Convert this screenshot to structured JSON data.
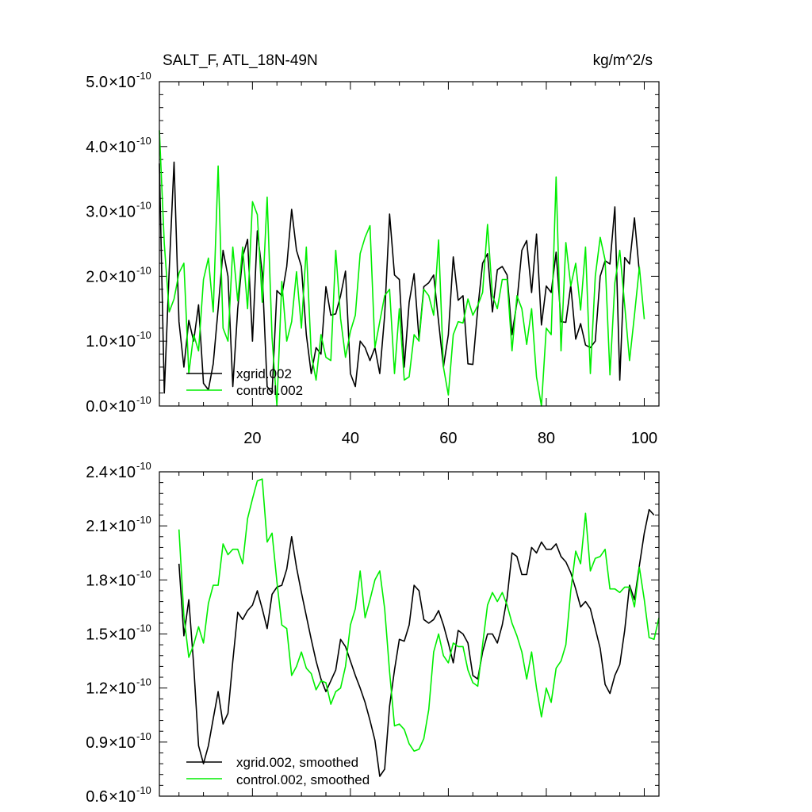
{
  "chart_data": [
    {
      "type": "line",
      "title": "SALT_F, ATL_18N-49N",
      "units": "kg/m^2/s",
      "xlim": [
        1,
        103
      ],
      "ylim": [
        0.0,
        5.0
      ],
      "y_exponent": "-10",
      "x_ticks": [
        20,
        40,
        60,
        80,
        100
      ],
      "x_tick_labels": [
        "20",
        "40",
        "60",
        "80",
        "100"
      ],
      "y_ticks": [
        0.0,
        1.0,
        2.0,
        3.0,
        4.0,
        5.0
      ],
      "y_tick_labels": [
        "0.0",
        "1.0",
        "2.0",
        "3.0",
        "4.0",
        "5.0"
      ],
      "legend_position": "bottom-left",
      "series": [
        {
          "name": "xgrid.002",
          "color": "#000000",
          "values": [
            3.74,
            0.2,
            2.1,
            3.76,
            1.3,
            0.6,
            1.32,
            1.0,
            1.56,
            0.35,
            0.25,
            0.65,
            1.5,
            2.4,
            2.0,
            0.3,
            1.5,
            2.3,
            2.57,
            1.0,
            2.7,
            2.05,
            0.3,
            0.2,
            1.78,
            1.7,
            2.15,
            3.03,
            2.4,
            2.15,
            1.1,
            0.5,
            0.9,
            0.8,
            1.84,
            1.4,
            1.42,
            1.7,
            2.08,
            0.5,
            0.3,
            1.0,
            0.9,
            0.7,
            0.9,
            0.5,
            1.4,
            2.96,
            2.02,
            1.95,
            0.6,
            1.6,
            2.04,
            1.03,
            1.84,
            1.9,
            2.02,
            1.3,
            0.6,
            1.1,
            2.3,
            1.63,
            1.7,
            0.65,
            0.64,
            1.5,
            2.2,
            2.35,
            1.45,
            2.1,
            2.15,
            2.02,
            1.1,
            1.6,
            2.4,
            2.55,
            1.75,
            2.65,
            1.25,
            1.85,
            1.75,
            2.37,
            1.3,
            1.29,
            1.86,
            1.03,
            1.27,
            0.94,
            0.9,
            1.0,
            2.0,
            2.24,
            2.19,
            3.07,
            0.4,
            2.29,
            2.19,
            2.9,
            2.06
          ]
        },
        {
          "name": "control.002",
          "color": "#00ee00",
          "values": [
            4.25,
            2.5,
            1.45,
            1.65,
            2.05,
            2.2,
            0.5,
            1.1,
            0.85,
            1.95,
            2.28,
            1.45,
            3.7,
            1.2,
            1.0,
            2.45,
            1.62,
            2.45,
            1.5,
            3.15,
            2.95,
            1.6,
            3.22,
            1.05,
            0.0,
            1.92,
            1.0,
            1.3,
            2.07,
            1.2,
            2.45,
            0.8,
            0.4,
            1.1,
            0.75,
            0.7,
            2.4,
            1.35,
            0.75,
            1.15,
            1.4,
            2.35,
            2.6,
            2.78,
            0.9,
            1.3,
            1.7,
            1.8,
            0.5,
            1.5,
            0.4,
            0.45,
            1.1,
            1.0,
            1.8,
            1.7,
            1.4,
            2.56,
            0.6,
            0.17,
            1.1,
            1.3,
            1.28,
            1.65,
            1.4,
            1.55,
            1.75,
            2.8,
            1.7,
            1.5,
            1.95,
            1.95,
            0.85,
            1.7,
            1.5,
            0.95,
            1.5,
            0.45,
            0.0,
            1.2,
            1.1,
            3.53,
            0.85,
            2.52,
            1.85,
            2.2,
            1.48,
            2.45,
            0.5,
            2.0,
            2.6,
            2.25,
            0.48,
            1.9,
            2.4,
            1.55,
            0.7,
            1.4,
            2.14,
            1.34
          ]
        }
      ]
    },
    {
      "type": "line",
      "xlim": [
        1,
        103
      ],
      "ylim": [
        0.6,
        2.4
      ],
      "y_exponent": "-10",
      "y_ticks": [
        0.6,
        0.9,
        1.2,
        1.5,
        1.8,
        2.1,
        2.4
      ],
      "y_tick_labels": [
        "0.6",
        "0.9",
        "1.2",
        "1.5",
        "1.8",
        "2.1",
        "2.4"
      ],
      "legend_position": "bottom-left",
      "series": [
        {
          "name": "xgrid.002, smoothed",
          "color": "#000000",
          "x_start": 5,
          "values": [
            1.89,
            1.49,
            1.69,
            1.33,
            0.88,
            0.78,
            0.88,
            1.03,
            1.18,
            1.0,
            1.06,
            1.35,
            1.62,
            1.58,
            1.63,
            1.66,
            1.74,
            1.64,
            1.53,
            1.72,
            1.76,
            1.77,
            1.86,
            2.04,
            1.87,
            1.73,
            1.6,
            1.47,
            1.35,
            1.25,
            1.18,
            1.24,
            1.3,
            1.47,
            1.43,
            1.35,
            1.27,
            1.2,
            1.12,
            1.02,
            0.91,
            0.71,
            0.75,
            1.1,
            1.3,
            1.47,
            1.46,
            1.55,
            1.77,
            1.74,
            1.58,
            1.56,
            1.58,
            1.63,
            1.55,
            1.45,
            1.34,
            1.52,
            1.5,
            1.45,
            1.27,
            1.25,
            1.4,
            1.5,
            1.5,
            1.45,
            1.55,
            1.7,
            1.95,
            1.93,
            1.83,
            1.83,
            1.98,
            1.95,
            2.01,
            1.97,
            1.97,
            2.0,
            1.93,
            1.9,
            1.84,
            1.75,
            1.65,
            1.68,
            1.64,
            1.53,
            1.42,
            1.22,
            1.17,
            1.27,
            1.33,
            1.52,
            1.77,
            1.69,
            1.88,
            2.06,
            2.19,
            2.16
          ]
        },
        {
          "name": "control.002, smoothed",
          "color": "#00ee00",
          "x_start": 5,
          "values": [
            2.08,
            1.6,
            1.37,
            1.44,
            1.54,
            1.45,
            1.67,
            1.77,
            1.77,
            2.0,
            1.94,
            1.97,
            1.97,
            1.89,
            2.14,
            2.25,
            2.35,
            2.36,
            2.01,
            2.06,
            1.79,
            1.55,
            1.53,
            1.27,
            1.32,
            1.4,
            1.31,
            1.28,
            1.19,
            1.24,
            1.23,
            1.11,
            1.18,
            1.2,
            1.32,
            1.55,
            1.64,
            1.85,
            1.59,
            1.69,
            1.8,
            1.85,
            1.64,
            1.29,
            0.99,
            1.0,
            0.97,
            0.89,
            0.85,
            0.86,
            0.92,
            1.08,
            1.4,
            1.5,
            1.38,
            1.34,
            1.45,
            1.43,
            1.43,
            1.3,
            1.23,
            1.21,
            1.44,
            1.66,
            1.73,
            1.68,
            1.73,
            1.66,
            1.56,
            1.49,
            1.4,
            1.25,
            1.4,
            1.2,
            1.04,
            1.2,
            1.12,
            1.31,
            1.35,
            1.44,
            1.74,
            1.96,
            1.89,
            2.17,
            1.85,
            1.92,
            1.93,
            1.97,
            1.75,
            1.75,
            1.73,
            1.76,
            1.76,
            1.65,
            1.87,
            1.69,
            1.48,
            1.47,
            1.59
          ]
        }
      ]
    }
  ]
}
